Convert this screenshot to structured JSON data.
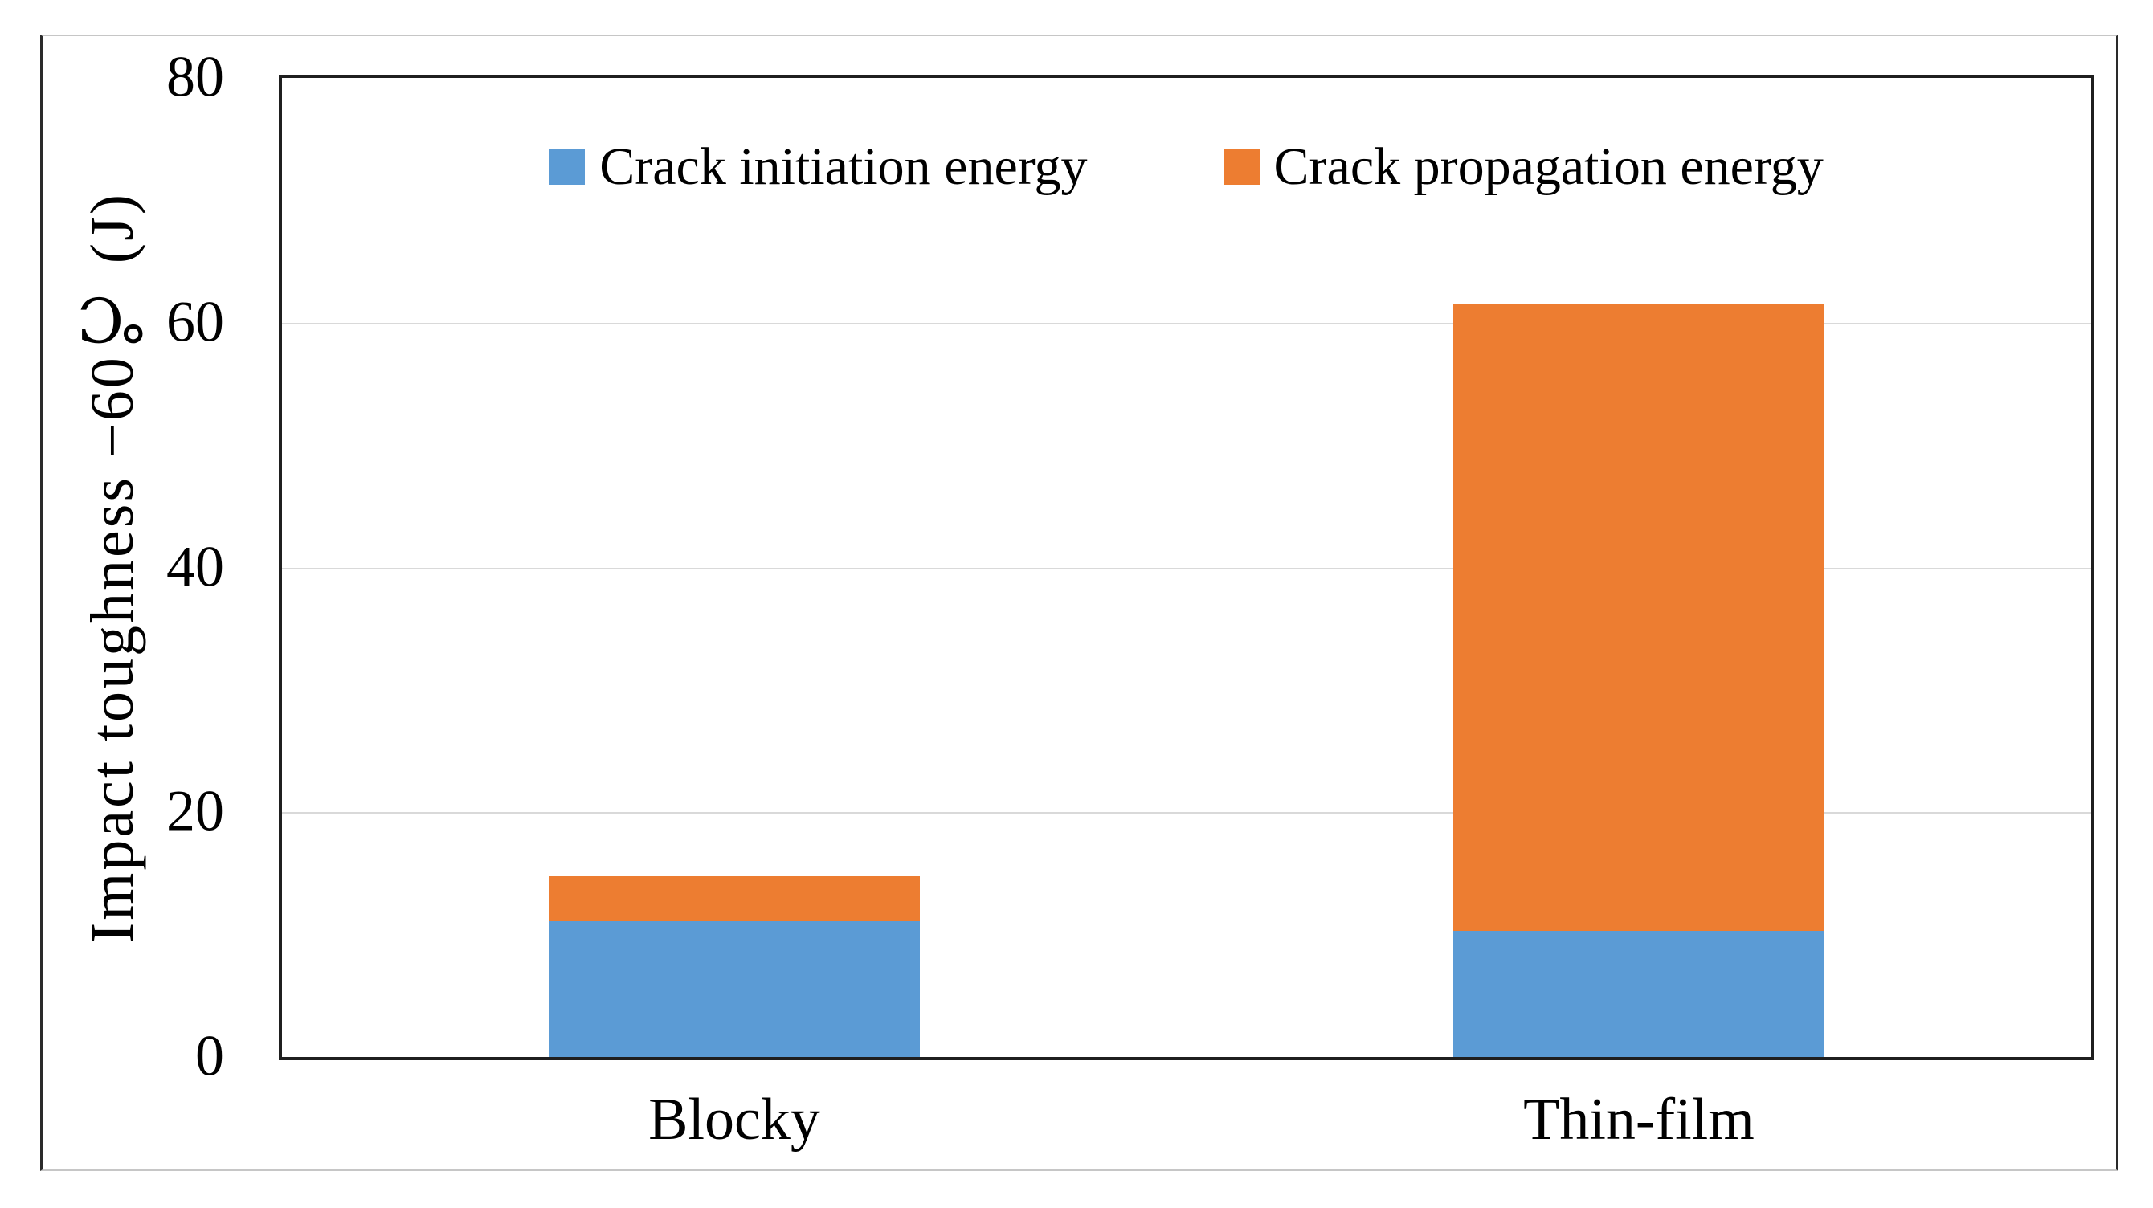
{
  "figure": {
    "background": "#ffffff",
    "border_side_color": "#2a2a2a",
    "border_topbottom_color": "#c6c6c6"
  },
  "chart_data": {
    "type": "bar",
    "stacked": true,
    "title": "",
    "categories": [
      "Blocky",
      "Thin-film"
    ],
    "series": [
      {
        "name": "Crack initiation energy",
        "color": "#5B9BD5",
        "values": [
          11.1,
          10.3
        ]
      },
      {
        "name": "Crack propagation energy",
        "color": "#ED7D31",
        "values": [
          3.7,
          51.2
        ]
      }
    ],
    "totals": [
      14.8,
      61.5
    ],
    "ylabel": "Impact toughness −60℃ (J)",
    "xlabel": "",
    "ylim": [
      0,
      80
    ],
    "yticks": [
      "0",
      "20",
      "40",
      "60",
      "80"
    ],
    "gridlines_at": [
      20,
      40,
      60
    ],
    "grid": true,
    "legend_position": "top-center",
    "axis_color": "#1f1f1f",
    "gridline_color": "#d9d9d9"
  }
}
